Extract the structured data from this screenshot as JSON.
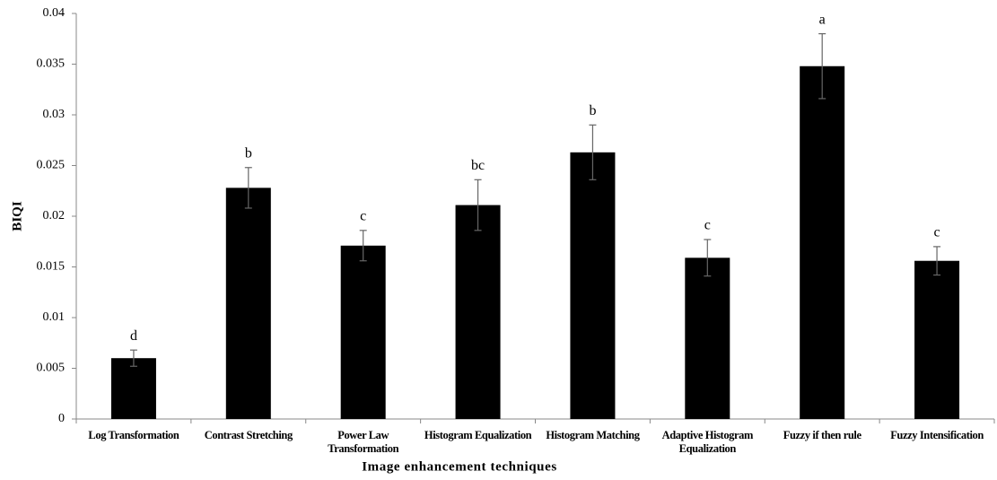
{
  "chart_data": {
    "type": "bar",
    "categories": [
      "Log Transformation",
      "Contrast Stretching",
      "Power Law Transformation",
      "Histogram Equalization",
      "Histogram Matching",
      "Adaptive Histogram Equalization",
      "Fuzzy if then rule",
      "Fuzzy Intensification"
    ],
    "values": [
      0.006,
      0.0228,
      0.0171,
      0.0211,
      0.0263,
      0.0159,
      0.0348,
      0.0156
    ],
    "errors": [
      0.0008,
      0.002,
      0.0015,
      0.0025,
      0.0027,
      0.0018,
      0.0032,
      0.0014
    ],
    "annotations": [
      "d",
      "b",
      "c",
      "bc",
      "b",
      "c",
      "a",
      "c"
    ],
    "color": "#000000",
    "ylabel": "BIQI",
    "xlabel": "Image enhancement techniques",
    "ylim": [
      0,
      0.04
    ],
    "yticks": [
      0,
      0.005,
      0.01,
      0.015,
      0.02,
      0.025,
      0.03,
      0.035,
      0.04
    ],
    "grid": false
  }
}
